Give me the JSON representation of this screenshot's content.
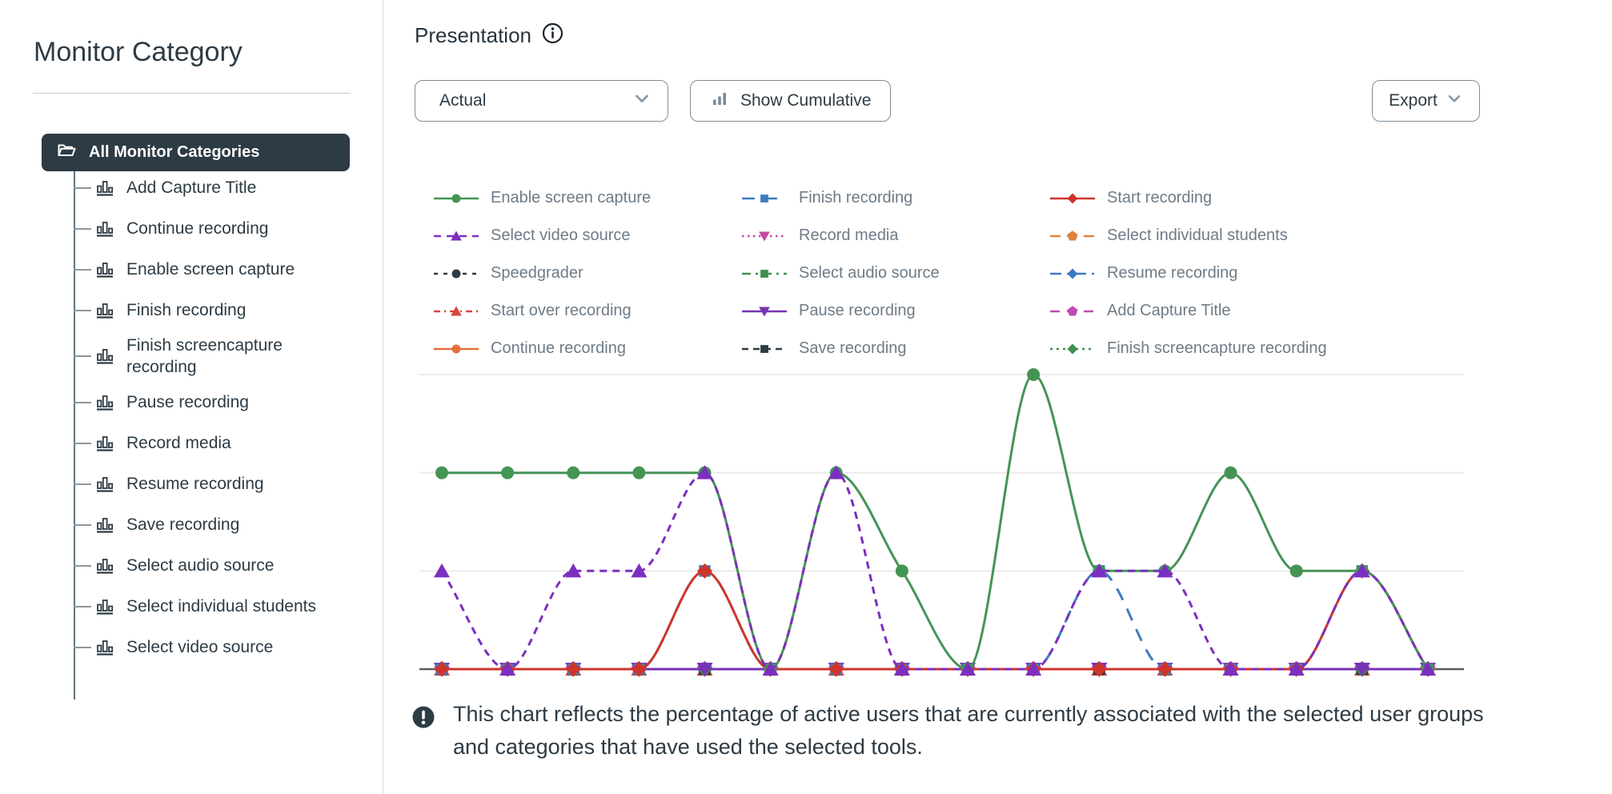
{
  "sidebar": {
    "title": "Monitor Category",
    "root_label": "All Monitor Categories",
    "items": [
      {
        "label": "Add Capture Title"
      },
      {
        "label": "Continue recording"
      },
      {
        "label": "Enable screen capture"
      },
      {
        "label": "Finish recording"
      },
      {
        "label": "Finish screencapture recording"
      },
      {
        "label": "Pause recording"
      },
      {
        "label": "Record media"
      },
      {
        "label": "Resume recording"
      },
      {
        "label": "Save recording"
      },
      {
        "label": "Select audio source"
      },
      {
        "label": "Select individual students"
      },
      {
        "label": "Select video source"
      }
    ]
  },
  "main": {
    "title": "Presentation",
    "view_dropdown_value": "Actual",
    "cumulative_button_label": "Show Cumulative",
    "export_button_label": "Export"
  },
  "note": {
    "text": "This chart reflects the percentage of active users that are currently associated with the selected user groups and categories that have used the selected tools."
  },
  "colors": {
    "accent_dark": "#2D3B45",
    "legend_text": "#6E7B87",
    "gridline": "#EBEBEB",
    "axis": "#5E5E5E"
  },
  "chart_data": {
    "type": "line",
    "title": "",
    "xlabel": "",
    "ylabel": "",
    "x_points": 16,
    "x_tick_labels_visible": false,
    "y_tick_labels_visible": false,
    "grid": "horizontal",
    "legend_position": "top",
    "units_note": "values are vertical gridline levels 0-3; axis tick labels are not visible in the screenshot",
    "ylim": [
      0,
      3.3
    ],
    "series": [
      {
        "name": "Enable screen capture",
        "color": "#459454",
        "dash": "",
        "marker": "circle",
        "z": 14,
        "values": [
          2,
          2,
          2,
          2,
          2,
          0,
          2,
          1,
          0,
          3,
          1,
          1,
          2,
          1,
          1,
          0
        ]
      },
      {
        "name": "Finish recording",
        "color": "#3E7CC1",
        "dash": "16 12",
        "marker": "square",
        "z": 12,
        "values": [
          0,
          0,
          0,
          0,
          1,
          0,
          0,
          0,
          0,
          0,
          1,
          0,
          0,
          0,
          1,
          0
        ]
      },
      {
        "name": "Start recording",
        "color": "#CE352C",
        "dash": "",
        "marker": "diamond",
        "z": 13,
        "values": [
          0,
          0,
          0,
          0,
          1,
          0,
          0,
          0,
          0,
          0,
          0,
          0,
          0,
          0,
          1,
          0
        ]
      },
      {
        "name": "Select video source",
        "color": "#7B2FC0",
        "dash": "9 7",
        "marker": "triangle-up",
        "z": 15,
        "values": [
          1,
          0,
          1,
          1,
          2,
          0,
          2,
          0,
          0,
          0,
          1,
          1,
          0,
          0,
          1,
          0
        ]
      },
      {
        "name": "Record media",
        "color": "#C34B9F",
        "dash": "2.5 4.5",
        "marker": "triangle-down",
        "z": 5,
        "values": [
          0,
          0,
          0,
          0,
          0,
          0,
          0,
          0,
          0,
          0,
          0,
          0,
          0,
          0,
          0,
          0
        ]
      },
      {
        "name": "Select individual students",
        "color": "#E0823C",
        "dash": "13 8",
        "marker": "pentagon",
        "z": 3,
        "values": [
          0,
          0,
          0,
          0,
          0,
          0,
          0,
          0,
          0,
          0,
          0,
          0,
          0,
          0,
          0,
          0
        ]
      },
      {
        "name": "Speedgrader",
        "color": "#2D3B45",
        "dash": "5 7",
        "marker": "circle",
        "z": 1,
        "values": [
          0,
          0,
          0,
          0,
          0,
          0,
          0,
          0,
          0,
          0,
          0,
          0,
          0,
          0,
          0,
          0
        ]
      },
      {
        "name": "Select audio source",
        "color": "#3F8F4F",
        "dash": "11 6 3 6",
        "marker": "square",
        "z": 8,
        "values": [
          0,
          0,
          0,
          0,
          0,
          0,
          0,
          0,
          0,
          0,
          0,
          0,
          0,
          0,
          0,
          0
        ]
      },
      {
        "name": "Resume recording",
        "color": "#3B79C6",
        "dash": "14 7 3 7",
        "marker": "diamond",
        "z": 7,
        "values": [
          0,
          0,
          0,
          0,
          0,
          0,
          0,
          0,
          0,
          0,
          0,
          0,
          0,
          0,
          0,
          0
        ]
      },
      {
        "name": "Start over recording",
        "color": "#D2473C",
        "dash": "8 5 2 5",
        "marker": "triangle-up",
        "z": 6,
        "values": [
          0,
          0,
          0,
          0,
          0,
          0,
          0,
          0,
          0,
          0,
          0,
          0,
          0,
          0,
          0,
          0
        ]
      },
      {
        "name": "Pause recording",
        "color": "#7733B5",
        "dash": "",
        "marker": "triangle-down",
        "z": 11,
        "values": [
          0,
          0,
          0,
          0,
          0,
          0,
          0,
          0,
          0,
          0,
          0,
          0,
          0,
          0,
          0,
          0
        ]
      },
      {
        "name": "Add Capture Title",
        "color": "#BE4BB5",
        "dash": "12 9",
        "marker": "pentagon",
        "z": 4,
        "values": [
          0,
          0,
          0,
          0,
          0,
          0,
          0,
          0,
          0,
          0,
          0,
          0,
          0,
          0,
          0,
          0
        ]
      },
      {
        "name": "Continue recording",
        "color": "#E2713B",
        "dash": "",
        "marker": "circle",
        "z": 2,
        "values": [
          0,
          0,
          0,
          0,
          0,
          0,
          0,
          0,
          0,
          0,
          0,
          0,
          0,
          0,
          0,
          0
        ]
      },
      {
        "name": "Save recording",
        "color": "#2D3B45",
        "dash": "8 6",
        "marker": "square",
        "z": 9,
        "values": [
          0,
          0,
          0,
          0,
          0,
          0,
          0,
          0,
          0,
          0,
          0,
          0,
          0,
          0,
          0,
          0
        ]
      },
      {
        "name": "Finish screencapture recording",
        "color": "#3F8F4F",
        "dash": "3 5",
        "marker": "diamond",
        "z": 10,
        "values": [
          0,
          0,
          0,
          0,
          0,
          0,
          0,
          0,
          0,
          0,
          0,
          0,
          0,
          0,
          0,
          0
        ]
      }
    ]
  }
}
